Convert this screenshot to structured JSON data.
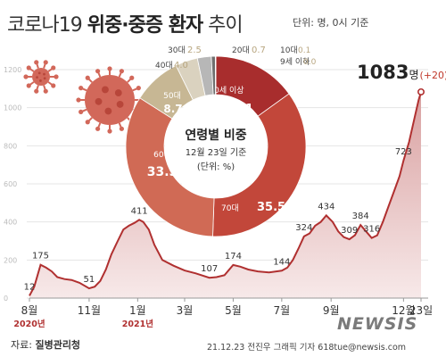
{
  "header": {
    "title_pre": "코로나19 ",
    "title_bold": "위중·중증 환자",
    "title_post": " 추이",
    "unit_note": "단위: 명, 0시 기준"
  },
  "chart_data": [
    {
      "type": "area",
      "ylim": [
        0,
        1200
      ],
      "yticks": [
        "0",
        "200",
        "400",
        "600",
        "800",
        "1000",
        "1200"
      ],
      "xlabels": [
        {
          "label": "8월",
          "at": "2020-08-18"
        },
        {
          "label": "11월",
          "at": "2020-11-01"
        },
        {
          "label": "1월",
          "at": "2021-01-01"
        },
        {
          "label": "3월",
          "at": "2021-03-01"
        },
        {
          "label": "5월",
          "at": "2021-05-01"
        },
        {
          "label": "7월",
          "at": "2021-07-01"
        },
        {
          "label": "9월",
          "at": "2021-09-01"
        },
        {
          "label": "12월",
          "at": "2021-12-01"
        },
        {
          "label": "23일",
          "at": "2021-12-23"
        }
      ],
      "year_labels": [
        {
          "label": "2020년",
          "at": "2020-08-18"
        },
        {
          "label": "2021년",
          "at": "2021-01-01"
        }
      ],
      "x": [
        "2020-08-18",
        "2020-08-24",
        "2020-09-01",
        "2020-09-08",
        "2020-09-15",
        "2020-09-22",
        "2020-10-01",
        "2020-10-10",
        "2020-10-20",
        "2020-11-01",
        "2020-11-08",
        "2020-11-15",
        "2020-11-22",
        "2020-11-29",
        "2020-12-07",
        "2020-12-14",
        "2020-12-21",
        "2020-12-28",
        "2021-01-03",
        "2021-01-08",
        "2021-01-15",
        "2021-01-22",
        "2021-02-01",
        "2021-02-15",
        "2021-03-01",
        "2021-03-15",
        "2021-04-01",
        "2021-04-10",
        "2021-04-20",
        "2021-05-01",
        "2021-05-10",
        "2021-05-20",
        "2021-06-01",
        "2021-06-15",
        "2021-07-01",
        "2021-07-08",
        "2021-07-15",
        "2021-07-22",
        "2021-07-29",
        "2021-08-05",
        "2021-08-12",
        "2021-08-19",
        "2021-08-26",
        "2021-09-03",
        "2021-09-10",
        "2021-09-17",
        "2021-09-24",
        "2021-10-01",
        "2021-10-08",
        "2021-10-15",
        "2021-10-22",
        "2021-10-29",
        "2021-11-05",
        "2021-11-12",
        "2021-11-19",
        "2021-11-26",
        "2021-12-01",
        "2021-12-08",
        "2021-12-15",
        "2021-12-20",
        "2021-12-23"
      ],
      "values": [
        12,
        60,
        175,
        160,
        140,
        110,
        100,
        95,
        80,
        51,
        60,
        90,
        150,
        230,
        300,
        360,
        380,
        395,
        411,
        400,
        360,
        280,
        200,
        170,
        145,
        130,
        107,
        110,
        120,
        174,
        165,
        150,
        140,
        135,
        144,
        160,
        200,
        260,
        324,
        340,
        380,
        400,
        434,
        400,
        350,
        320,
        309,
        330,
        384,
        350,
        316,
        330,
        400,
        480,
        560,
        640,
        723,
        820,
        950,
        1040,
        1083
      ],
      "point_labels": [
        {
          "at": "2020-08-18",
          "text": "12"
        },
        {
          "at": "2020-09-01",
          "text": "175"
        },
        {
          "at": "2020-11-01",
          "text": "51"
        },
        {
          "at": "2021-01-03",
          "text": "411"
        },
        {
          "at": "2021-04-01",
          "text": "107"
        },
        {
          "at": "2021-05-01",
          "text": "174"
        },
        {
          "at": "2021-07-01",
          "text": "144"
        },
        {
          "at": "2021-07-29",
          "text": "324"
        },
        {
          "at": "2021-08-26",
          "text": "434"
        },
        {
          "at": "2021-09-24",
          "text": "309"
        },
        {
          "at": "2021-10-08",
          "text": "384"
        },
        {
          "at": "2021-10-22",
          "text": "316"
        },
        {
          "at": "2021-12-01",
          "text": "723"
        }
      ],
      "latest": {
        "value": "1083",
        "unit": "명",
        "change": "(+20)"
      }
    },
    {
      "type": "pie",
      "title": "연령별 비중",
      "subtitle": "12월 23일 기준",
      "unit": "(단위: %)",
      "slices": [
        {
          "label": "80세 이상",
          "value": 15.1,
          "color": "#a82d2d"
        },
        {
          "label": "70대",
          "value": 35.5,
          "color": "#c2473a"
        },
        {
          "label": "60대",
          "value": 33.5,
          "color": "#d06a55"
        },
        {
          "label": "50대",
          "value": 8.7,
          "color": "#c7b794"
        },
        {
          "label": "40대",
          "value": 4.0,
          "color": "#dad2bf"
        },
        {
          "label": "30대",
          "value": 2.5,
          "color": "#b7b7b7"
        },
        {
          "label": "20대",
          "value": 0.7,
          "color": "#6f6f6f"
        },
        {
          "label": "10대",
          "value": 0.1,
          "color": "#4a4a4a"
        },
        {
          "label": "9세 이하",
          "value": 0,
          "color": "#333333"
        }
      ]
    }
  ],
  "footer": {
    "source_prefix": "자료: ",
    "source_name": "질병관리청",
    "credit": "21.12.23 전진우 그래픽 기자 618tue@newsis.com",
    "logo": "NEWSIS"
  },
  "colors": {
    "line": "#b03030",
    "area_top": "#d9a0a0",
    "area_bottom": "#f7e9e9",
    "virus": "#d2685a"
  }
}
